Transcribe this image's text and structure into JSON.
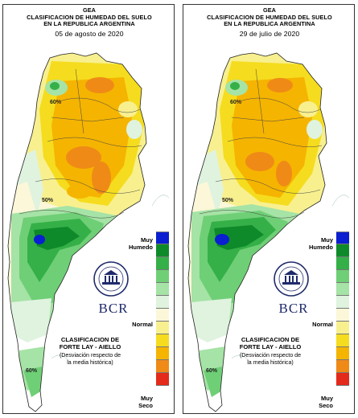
{
  "panels": [
    {
      "org": "GEA",
      "title1": "CLASIFICACION DE HUMEDAD DEL SUELO",
      "title2": "EN LA REPUBLICA ARGENTINA",
      "date": "05 de agosto de 2020"
    },
    {
      "org": "GEA",
      "title1": "CLASIFICACION DE HUMEDAD DEL SUELO",
      "title2": "EN LA REPUBLICA ARGENTINA",
      "date": "29 de julio de 2020"
    }
  ],
  "legend": {
    "top_label_1": "Muy",
    "top_label_2": "Humedo",
    "mid_label": "Normal",
    "bottom_label_1": "Muy",
    "bottom_label_2": "Seco",
    "colors": [
      "#0a1fd0",
      "#0f8a2a",
      "#35b048",
      "#6fcf76",
      "#a6e3a6",
      "#dff3df",
      "#fbf7d8",
      "#f8f08f",
      "#f5dc1e",
      "#f5b400",
      "#ef8a17",
      "#e42a1b"
    ]
  },
  "source": {
    "logo_text": "BCR",
    "classification_1": "CLASIFICACION DE",
    "classification_2": "FORTE LAY - AIELLO",
    "description_1": "(Desviación respecto de",
    "description_2": "la media histórica)"
  },
  "isolines": [
    "60%",
    "50%",
    "60%"
  ]
}
